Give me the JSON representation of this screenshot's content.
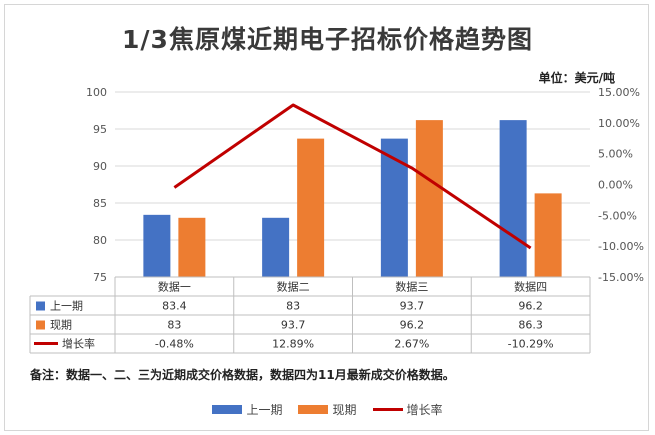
{
  "chart_data": {
    "type": "bar",
    "title": "1/3焦原煤近期电子招标价格趋势图",
    "unit_label": "单位：美元/吨",
    "categories": [
      "数据一",
      "数据二",
      "数据三",
      "数据四"
    ],
    "series": [
      {
        "name": "上一期",
        "kind": "bar",
        "axis": "left",
        "color": "#4472c4",
        "values": [
          83.4,
          83,
          93.7,
          96.2
        ],
        "labels": [
          "83.4",
          "83",
          "93.7",
          "96.2"
        ]
      },
      {
        "name": "现期",
        "kind": "bar",
        "axis": "left",
        "color": "#ed7d31",
        "values": [
          83,
          93.7,
          96.2,
          86.3
        ],
        "labels": [
          "83",
          "93.7",
          "96.2",
          "86.3"
        ]
      },
      {
        "name": "增长率",
        "kind": "line",
        "axis": "right",
        "color": "#c00000",
        "values": [
          -0.48,
          12.89,
          2.67,
          -10.29
        ],
        "labels": [
          "-0.48%",
          "12.89%",
          "2.67%",
          "-10.29%"
        ]
      }
    ],
    "y_left": {
      "min": 75,
      "max": 100,
      "step": 5,
      "ticks": [
        "75",
        "80",
        "85",
        "90",
        "95",
        "100"
      ]
    },
    "y_right": {
      "min": -15,
      "max": 15,
      "step": 5,
      "ticks": [
        "-15.00%",
        "-10.00%",
        "-5.00%",
        "0.00%",
        "5.00%",
        "10.00%",
        "15.00%"
      ]
    },
    "grid": "horizontal",
    "legend_position": "bottom",
    "data_table": true
  },
  "note": "备注：数据一、二、三为近期成交价格数据，数据四为11月最新成交价格数据。"
}
